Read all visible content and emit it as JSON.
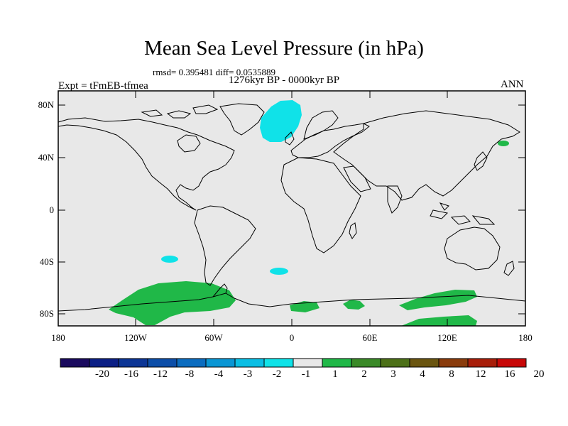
{
  "title": "Mean Sea Level Pressure (in hPa)",
  "stats": "rmsd= 0.395481 diff= 0.0535889",
  "period": "1276kyr BP - 0000kyr BP",
  "experiment": "Expt = tFmEB-tfmea",
  "season": "ANN",
  "lat_labels": [
    "80N",
    "40N",
    "0",
    "40S",
    "80S"
  ],
  "lon_labels": [
    "180",
    "120W",
    "60W",
    "0",
    "60E",
    "120E",
    "180"
  ],
  "colorbar": {
    "labels": [
      "-20",
      "-16",
      "-12",
      "-8",
      "-4",
      "-3",
      "-2",
      "-1",
      "1",
      "2",
      "3",
      "4",
      "8",
      "12",
      "16",
      "20"
    ],
    "colors": [
      "#1a0a5e",
      "#0b1f85",
      "#0c3595",
      "#0c4ea8",
      "#0b6cbf",
      "#0a96d4",
      "#0bbee4",
      "#10e2e8",
      "#e8e8e8",
      "#20b848",
      "#3a8a28",
      "#4c7018",
      "#6a5510",
      "#8a3c0c",
      "#a81e0a",
      "#c80808"
    ]
  },
  "colors": {
    "ocean_land_background": "#e8e8e8",
    "negative_anomaly": "#10e2e8",
    "positive_anomaly": "#20b848"
  }
}
